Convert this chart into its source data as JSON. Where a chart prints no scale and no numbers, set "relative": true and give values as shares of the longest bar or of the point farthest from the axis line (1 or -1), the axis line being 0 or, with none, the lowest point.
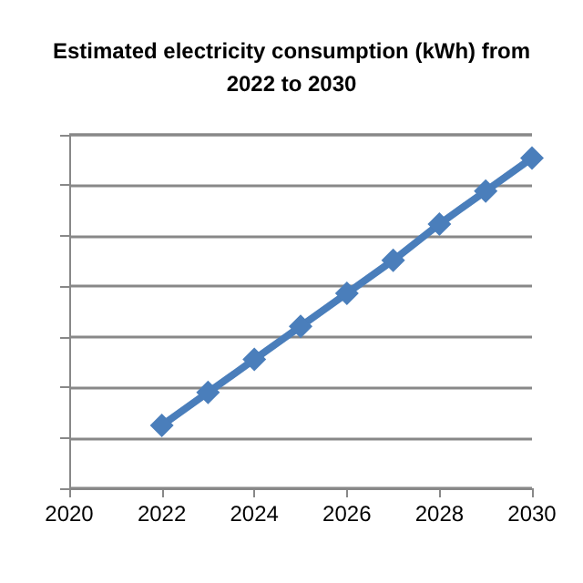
{
  "chart_data": {
    "type": "line",
    "title": "Estimated electricity consumption (kWh) from\n2022 to 2030",
    "x": [
      2022,
      2023,
      2024,
      2025,
      2026,
      2027,
      2028,
      2029,
      2030
    ],
    "series": [
      {
        "color": "#4a7ebb",
        "values": [
          0.19,
          0.29,
          0.39,
          0.49,
          0.59,
          0.69,
          0.8,
          0.9,
          1
        ]
      }
    ],
    "relative": true,
    "xlim": [
      2020,
      2030
    ],
    "xticks": [
      2020,
      2022,
      2024,
      2026,
      2028,
      2030
    ],
    "grid": "y",
    "marker": "diamond",
    "line_style": "solid"
  }
}
